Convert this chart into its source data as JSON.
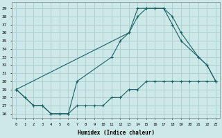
{
  "xlabel": "Humidex (Indice chaleur)",
  "background_color": "#cce8e8",
  "grid_color": "#aacccc",
  "line_color": "#1a6060",
  "xlim": [
    -0.5,
    23.5
  ],
  "ylim": [
    25.5,
    39.8
  ],
  "line1_x": [
    0,
    1,
    2,
    3,
    4,
    5,
    6,
    7,
    11,
    12,
    13,
    14,
    15,
    16,
    17,
    18,
    19,
    21,
    22,
    23
  ],
  "line1_y": [
    29,
    28,
    27,
    27,
    26,
    26,
    26,
    30,
    33,
    35,
    36,
    39,
    39,
    39,
    39,
    37,
    35,
    33,
    32,
    30
  ],
  "line2_x": [
    0,
    13,
    14,
    15,
    16,
    17,
    18,
    19,
    21,
    22,
    23
  ],
  "line2_y": [
    29,
    36,
    38,
    39,
    39,
    39,
    38,
    36,
    33,
    32,
    30
  ],
  "line3_x": [
    0,
    2,
    3,
    4,
    5,
    6,
    7,
    8,
    9,
    10,
    11,
    12,
    13,
    14,
    15,
    16,
    17,
    18,
    19,
    20,
    21,
    22,
    23
  ],
  "line3_y": [
    29,
    27,
    27,
    26,
    26,
    26,
    27,
    27,
    27,
    27,
    28,
    28,
    29,
    29,
    30,
    30,
    30,
    30,
    30,
    30,
    30,
    30,
    30
  ]
}
